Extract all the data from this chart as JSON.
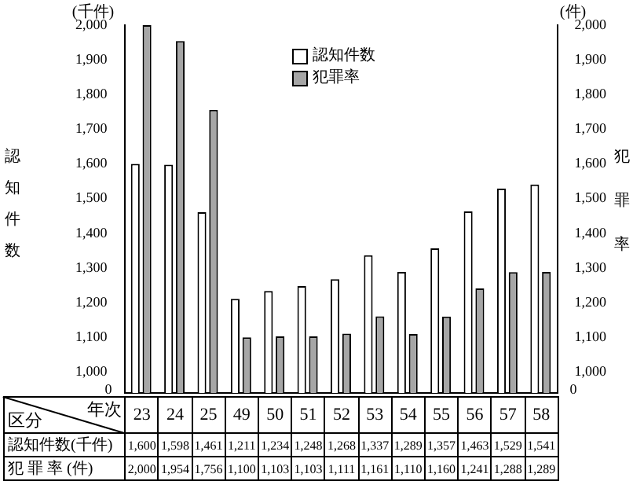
{
  "chart_data": {
    "type": "bar",
    "categories": [
      "23",
      "24",
      "25",
      "49",
      "50",
      "51",
      "52",
      "53",
      "54",
      "55",
      "56",
      "57",
      "58"
    ],
    "series": [
      {
        "name": "認知件数",
        "color": "#ffffff",
        "values": [
          1600,
          1598,
          1461,
          1211,
          1234,
          1248,
          1268,
          1337,
          1289,
          1357,
          1463,
          1529,
          1541
        ],
        "value_labels": [
          "1,600",
          "1,598",
          "1,461",
          "1,211",
          "1,234",
          "1,248",
          "1,268",
          "1,337",
          "1,289",
          "1,357",
          "1,463",
          "1,529",
          "1,541"
        ]
      },
      {
        "name": "犯罪率",
        "color": "#a6a6a6",
        "axis": "y2",
        "values": [
          2000,
          1954,
          1756,
          1100,
          1103,
          1103,
          1111,
          1161,
          1110,
          1160,
          1241,
          1288,
          1289
        ],
        "value_labels": [
          "2,000",
          "1,954",
          "1,756",
          "1,100",
          "1,103",
          "1,103",
          "1,111",
          "1,161",
          "1,110",
          "1,160",
          "1,241",
          "1,288",
          "1,289"
        ]
      }
    ],
    "ylabel": "認知件数",
    "y2label": "犯罪率",
    "ylim": [
      940,
      2000
    ],
    "yticks": [
      {
        "value": 1000,
        "label": "1,000"
      },
      {
        "value": 1100,
        "label": "1,100"
      },
      {
        "value": 1200,
        "label": "1,200"
      },
      {
        "value": 1300,
        "label": "1,300"
      },
      {
        "value": 1400,
        "label": "1,400"
      },
      {
        "value": 1500,
        "label": "1,500"
      },
      {
        "value": 1600,
        "label": "1,600"
      },
      {
        "value": 1700,
        "label": "1,700"
      },
      {
        "value": 1800,
        "label": "1,800"
      },
      {
        "value": 1900,
        "label": "1,900"
      },
      {
        "value": 2000,
        "label": "2,000"
      }
    ],
    "y2lim": [
      940,
      2000
    ],
    "y2ticks": [
      {
        "value": 1000,
        "label": "1,000"
      },
      {
        "value": 1100,
        "label": "1,100"
      },
      {
        "value": 1200,
        "label": "1,200"
      },
      {
        "value": 1300,
        "label": "1,300"
      },
      {
        "value": 1400,
        "label": "1,400"
      },
      {
        "value": 1500,
        "label": "1,500"
      },
      {
        "value": 1600,
        "label": "1,600"
      },
      {
        "value": 1700,
        "label": "1,700"
      },
      {
        "value": 1800,
        "label": "1,800"
      },
      {
        "value": 1900,
        "label": "1,900"
      },
      {
        "value": 2000,
        "label": "2,000"
      }
    ],
    "annotations": [
      "(千件)",
      "(件)",
      "区分",
      "年次",
      "認知件数(千件)",
      "犯 罪 率 (件)",
      "0",
      "0"
    ],
    "legend": "top",
    "grid": false,
    "tick_labels": "y"
  }
}
